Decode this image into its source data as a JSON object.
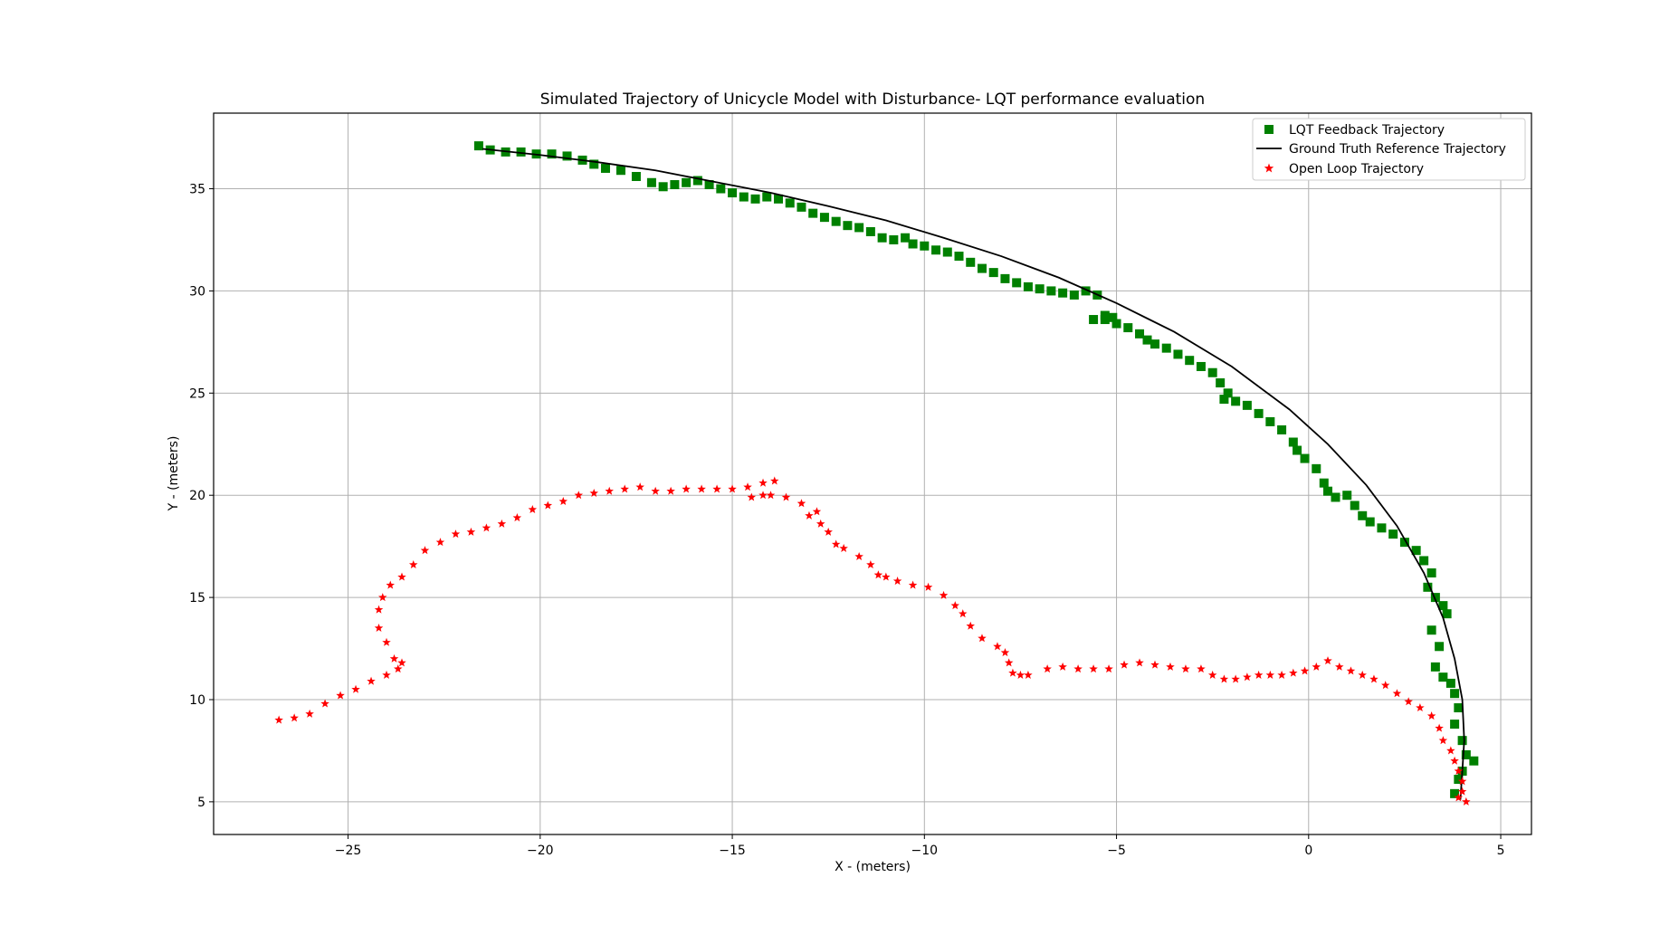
{
  "chart_data": {
    "type": "scatter",
    "title": "Simulated Trajectory of Unicycle Model with Disturbance- LQT performance evaluation",
    "xlabel": "X - (meters)",
    "ylabel": "Y - (meters)",
    "xlim": [
      -28.5,
      5.8
    ],
    "ylim": [
      3.4,
      38.7
    ],
    "xticks": [
      -25,
      -20,
      -15,
      -10,
      -5,
      0,
      5
    ],
    "xtick_labels": [
      "−25",
      "−20",
      "−15",
      "−10",
      "−5",
      "0",
      "5"
    ],
    "yticks": [
      5,
      10,
      15,
      20,
      25,
      30,
      35
    ],
    "ytick_labels": [
      "5",
      "10",
      "15",
      "20",
      "25",
      "30",
      "35"
    ],
    "grid": true,
    "legend_position": "top-right",
    "series": [
      {
        "name": " LQT Feedback Trajectory",
        "marker": "square",
        "color": "#008000",
        "x": [
          -21.6,
          -21.3,
          -20.9,
          -20.5,
          -20.1,
          -19.7,
          -19.3,
          -18.9,
          -18.6,
          -18.3,
          -17.9,
          -17.5,
          -17.1,
          -16.8,
          -16.5,
          -16.2,
          -15.9,
          -15.6,
          -15.3,
          -15.0,
          -14.7,
          -14.4,
          -14.1,
          -13.8,
          -13.5,
          -13.2,
          -12.9,
          -12.6,
          -12.3,
          -12.0,
          -11.7,
          -11.4,
          -11.1,
          -10.8,
          -10.5,
          -10.3,
          -10.0,
          -9.7,
          -9.4,
          -9.1,
          -8.8,
          -8.5,
          -8.2,
          -7.9,
          -7.6,
          -7.3,
          -7.0,
          -6.7,
          -6.4,
          -6.1,
          -5.8,
          -5.5,
          -5.3,
          -5.1,
          -5.6,
          -5.3,
          -5.0,
          -4.7,
          -4.4,
          -4.2,
          -4.0,
          -3.7,
          -3.4,
          -3.1,
          -2.8,
          -2.5,
          -2.3,
          -2.1,
          -2.2,
          -1.9,
          -1.6,
          -1.3,
          -1.0,
          -0.7,
          -0.4,
          -0.3,
          -0.1,
          0.2,
          0.4,
          0.5,
          0.7,
          1.0,
          1.2,
          1.4,
          1.6,
          1.9,
          2.2,
          2.5,
          2.8,
          3.0,
          3.2,
          3.1,
          3.3,
          3.5,
          3.6,
          3.2,
          3.4,
          3.3,
          3.5,
          3.7,
          3.8,
          3.9,
          3.8,
          4.0,
          4.1,
          4.3,
          4.0,
          3.9,
          3.8
        ],
        "y": [
          37.1,
          36.9,
          36.8,
          36.8,
          36.7,
          36.7,
          36.6,
          36.4,
          36.2,
          36.0,
          35.9,
          35.6,
          35.3,
          35.1,
          35.2,
          35.3,
          35.4,
          35.2,
          35.0,
          34.8,
          34.6,
          34.5,
          34.6,
          34.5,
          34.3,
          34.1,
          33.8,
          33.6,
          33.4,
          33.2,
          33.1,
          32.9,
          32.6,
          32.5,
          32.6,
          32.3,
          32.2,
          32.0,
          31.9,
          31.7,
          31.4,
          31.1,
          30.9,
          30.6,
          30.4,
          30.2,
          30.1,
          30.0,
          29.9,
          29.8,
          30.0,
          29.8,
          28.8,
          28.7,
          28.6,
          28.6,
          28.4,
          28.2,
          27.9,
          27.6,
          27.4,
          27.2,
          26.9,
          26.6,
          26.3,
          26.0,
          25.5,
          25.0,
          24.7,
          24.6,
          24.4,
          24.0,
          23.6,
          23.2,
          22.6,
          22.2,
          21.8,
          21.3,
          20.6,
          20.2,
          19.9,
          20.0,
          19.5,
          19.0,
          18.7,
          18.4,
          18.1,
          17.7,
          17.3,
          16.8,
          16.2,
          15.5,
          15.0,
          14.6,
          14.2,
          13.4,
          12.6,
          11.6,
          11.1,
          10.8,
          10.3,
          9.6,
          8.8,
          8.0,
          7.3,
          7.0,
          6.5,
          6.1,
          5.4
        ]
      },
      {
        "name": " Ground Truth Reference Trajectory",
        "marker": "line",
        "color": "#000000",
        "x": [
          -21.5,
          -20.0,
          -18.5,
          -17.0,
          -15.5,
          -14.0,
          -12.5,
          -11.0,
          -9.5,
          -8.0,
          -6.5,
          -5.0,
          -3.5,
          -2.0,
          -0.5,
          0.5,
          1.5,
          2.3,
          3.0,
          3.5,
          3.8,
          4.0,
          4.05,
          4.0,
          3.95
        ],
        "y": [
          36.95,
          36.65,
          36.3,
          35.9,
          35.35,
          34.8,
          34.15,
          33.45,
          32.6,
          31.7,
          30.65,
          29.4,
          28.0,
          26.3,
          24.2,
          22.5,
          20.5,
          18.5,
          16.2,
          14.0,
          12.0,
          10.0,
          8.0,
          6.5,
          5.1
        ]
      },
      {
        "name": " Open Loop Trajectory",
        "marker": "star",
        "color": "#ff0000",
        "x": [
          -26.8,
          -26.4,
          -26.0,
          -25.6,
          -25.2,
          -24.8,
          -24.4,
          -24.0,
          -23.7,
          -23.6,
          -23.8,
          -24.0,
          -24.2,
          -24.2,
          -24.1,
          -23.9,
          -23.6,
          -23.3,
          -23.0,
          -22.6,
          -22.2,
          -21.8,
          -21.4,
          -21.0,
          -20.6,
          -20.2,
          -19.8,
          -19.4,
          -19.0,
          -18.6,
          -18.2,
          -17.8,
          -17.4,
          -17.0,
          -16.6,
          -16.2,
          -15.8,
          -15.4,
          -15.0,
          -14.6,
          -14.2,
          -13.9,
          -14.2,
          -14.5,
          -14.0,
          -13.6,
          -13.2,
          -12.8,
          -13.0,
          -12.7,
          -12.5,
          -12.3,
          -12.1,
          -11.7,
          -11.4,
          -11.2,
          -11.0,
          -10.7,
          -10.3,
          -9.9,
          -9.5,
          -9.2,
          -9.0,
          -8.8,
          -8.5,
          -8.1,
          -7.9,
          -7.8,
          -7.7,
          -7.5,
          -7.3,
          -6.8,
          -6.4,
          -6.0,
          -5.6,
          -5.2,
          -4.8,
          -4.4,
          -4.0,
          -3.6,
          -3.2,
          -2.8,
          -2.5,
          -2.2,
          -1.9,
          -1.6,
          -1.3,
          -1.0,
          -0.7,
          -0.4,
          -0.1,
          0.2,
          0.5,
          0.8,
          1.1,
          1.4,
          1.7,
          2.0,
          2.3,
          2.6,
          2.9,
          3.2,
          3.4,
          3.5,
          3.7,
          3.8,
          3.9,
          4.0,
          4.0,
          3.9,
          4.1
        ],
        "y": [
          9.0,
          9.1,
          9.3,
          9.8,
          10.2,
          10.5,
          10.9,
          11.2,
          11.5,
          11.8,
          12.0,
          12.8,
          13.5,
          14.4,
          15.0,
          15.6,
          16.0,
          16.6,
          17.3,
          17.7,
          18.1,
          18.2,
          18.4,
          18.6,
          18.9,
          19.3,
          19.5,
          19.7,
          20.0,
          20.1,
          20.2,
          20.3,
          20.4,
          20.2,
          20.2,
          20.3,
          20.3,
          20.3,
          20.3,
          20.4,
          20.6,
          20.7,
          20.0,
          19.9,
          20.0,
          19.9,
          19.6,
          19.2,
          19.0,
          18.6,
          18.2,
          17.6,
          17.4,
          17.0,
          16.6,
          16.1,
          16.0,
          15.8,
          15.6,
          15.5,
          15.1,
          14.6,
          14.2,
          13.6,
          13.0,
          12.6,
          12.3,
          11.8,
          11.3,
          11.2,
          11.2,
          11.5,
          11.6,
          11.5,
          11.5,
          11.5,
          11.7,
          11.8,
          11.7,
          11.6,
          11.5,
          11.5,
          11.2,
          11.0,
          11.0,
          11.1,
          11.2,
          11.2,
          11.2,
          11.3,
          11.4,
          11.6,
          11.9,
          11.6,
          11.4,
          11.2,
          11.0,
          10.7,
          10.3,
          9.9,
          9.6,
          9.2,
          8.6,
          8.0,
          7.5,
          7.0,
          6.5,
          6.0,
          5.5,
          5.2,
          5.0
        ]
      }
    ]
  }
}
